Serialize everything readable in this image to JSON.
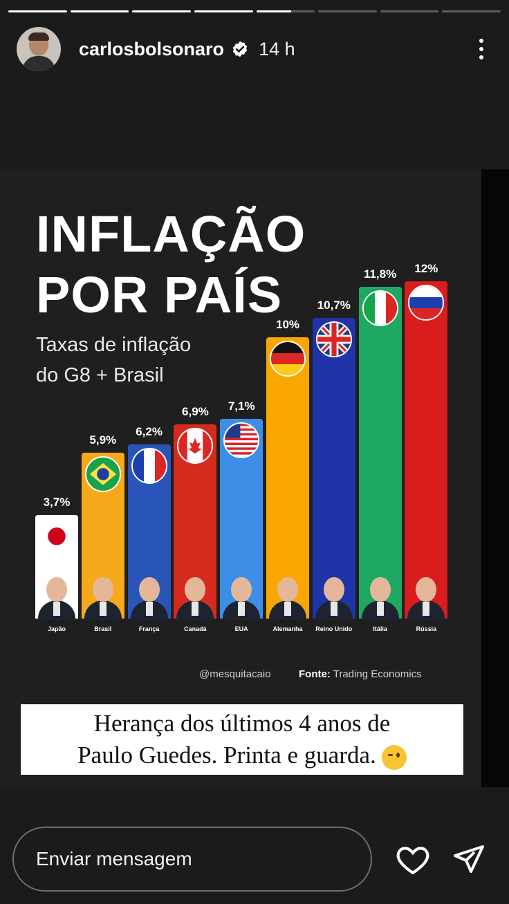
{
  "story": {
    "segments": 8,
    "progress": [
      1,
      1,
      1,
      1,
      0.6,
      0,
      0,
      0
    ]
  },
  "header": {
    "username": "carlosbolsonaro",
    "time": "14 h",
    "verified": true
  },
  "post": {
    "title_line1": "INFLAÇÃO",
    "title_line2": "POR PAÍS",
    "subtitle_line1": "Taxas de inflação",
    "subtitle_line2": "do G8 + Brasil",
    "handle": "@mesquitacaio",
    "source_label": "Fonte:",
    "source_value": "Trading Economics",
    "caption_line1": "Herança dos últimos 4 anos de",
    "caption_line2": "Paulo Guedes. Printa e guarda."
  },
  "chart_data": {
    "type": "bar",
    "title": "INFLAÇÃO POR PAÍS",
    "subtitle": "Taxas de inflação do G8 + Brasil",
    "categories": [
      "Japão",
      "Brasil",
      "França",
      "Canadá",
      "EUA",
      "Alemanha",
      "Reino Unido",
      "Itália",
      "Rússia"
    ],
    "values": [
      3.7,
      5.9,
      6.2,
      6.9,
      7.1,
      10,
      10.7,
      11.8,
      12
    ],
    "value_labels": [
      "3,7%",
      "5,9%",
      "6,2%",
      "6,9%",
      "7,1%",
      "10%",
      "10,7%",
      "11,8%",
      "12%"
    ],
    "colors": [
      "#ffffff",
      "#f5a91b",
      "#2a55b8",
      "#d52b1e",
      "#3d8ee6",
      "#f9a602",
      "#1f34a8",
      "#1ea862",
      "#d91c1c"
    ],
    "flags": [
      "japan",
      "brazil",
      "france",
      "canada",
      "usa",
      "germany",
      "uk",
      "italy",
      "russia"
    ],
    "ylim": [
      0,
      12
    ]
  },
  "footer": {
    "message_placeholder": "Enviar mensagem"
  },
  "icons": {
    "verified": "verified-badge-icon",
    "more": "more-options-icon",
    "heart": "heart-icon",
    "send": "send-icon"
  }
}
